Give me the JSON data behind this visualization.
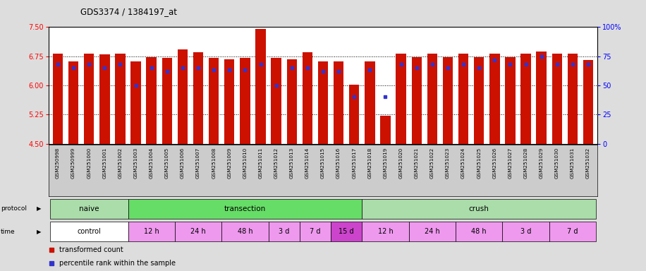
{
  "title": "GDS3374 / 1384197_at",
  "samples": [
    "GSM250998",
    "GSM250999",
    "GSM251000",
    "GSM251001",
    "GSM251002",
    "GSM251003",
    "GSM251004",
    "GSM251005",
    "GSM251006",
    "GSM251007",
    "GSM251008",
    "GSM251009",
    "GSM251010",
    "GSM251011",
    "GSM251012",
    "GSM251013",
    "GSM251014",
    "GSM251015",
    "GSM251016",
    "GSM251017",
    "GSM251018",
    "GSM251019",
    "GSM251020",
    "GSM251021",
    "GSM251022",
    "GSM251023",
    "GSM251024",
    "GSM251025",
    "GSM251026",
    "GSM251027",
    "GSM251028",
    "GSM251029",
    "GSM251030",
    "GSM251031",
    "GSM251032"
  ],
  "transformed_count": [
    6.82,
    6.62,
    6.82,
    6.8,
    6.82,
    6.62,
    6.72,
    6.7,
    6.92,
    6.85,
    6.7,
    6.68,
    6.7,
    7.46,
    6.7,
    6.68,
    6.86,
    6.62,
    6.62,
    6.02,
    6.62,
    5.22,
    6.82,
    6.72,
    6.82,
    6.72,
    6.82,
    6.72,
    6.82,
    6.72,
    6.82,
    6.88,
    6.82,
    6.82,
    6.65
  ],
  "percentile_rank": [
    68,
    65,
    68,
    65,
    68,
    50,
    65,
    62,
    65,
    65,
    63,
    63,
    63,
    68,
    50,
    65,
    65,
    62,
    62,
    40,
    63,
    40,
    68,
    65,
    68,
    65,
    68,
    65,
    72,
    68,
    68,
    75,
    68,
    68,
    68
  ],
  "ylim_left": [
    4.5,
    7.5
  ],
  "ylim_right": [
    0,
    100
  ],
  "yticks_left": [
    4.5,
    5.25,
    6.0,
    6.75,
    7.5
  ],
  "yticks_right": [
    0,
    25,
    50,
    75,
    100
  ],
  "bar_color": "#cc1100",
  "dot_color": "#3333cc",
  "protocol_groups": [
    {
      "label": "naive",
      "start": 0,
      "end": 4,
      "color": "#aaddaa"
    },
    {
      "label": "transection",
      "start": 5,
      "end": 19,
      "color": "#66dd66"
    },
    {
      "label": "crush",
      "start": 20,
      "end": 34,
      "color": "#aaddaa"
    }
  ],
  "time_groups": [
    {
      "label": "control",
      "start": 0,
      "end": 4,
      "color": "#ffffff"
    },
    {
      "label": "12 h",
      "start": 5,
      "end": 7,
      "color": "#ee99ee"
    },
    {
      "label": "24 h",
      "start": 8,
      "end": 10,
      "color": "#ee99ee"
    },
    {
      "label": "48 h",
      "start": 11,
      "end": 13,
      "color": "#ee99ee"
    },
    {
      "label": "3 d",
      "start": 14,
      "end": 15,
      "color": "#ee99ee"
    },
    {
      "label": "7 d",
      "start": 16,
      "end": 17,
      "color": "#ee99ee"
    },
    {
      "label": "15 d",
      "start": 18,
      "end": 19,
      "color": "#cc44cc"
    },
    {
      "label": "12 h",
      "start": 20,
      "end": 22,
      "color": "#ee99ee"
    },
    {
      "label": "24 h",
      "start": 23,
      "end": 25,
      "color": "#ee99ee"
    },
    {
      "label": "48 h",
      "start": 26,
      "end": 28,
      "color": "#ee99ee"
    },
    {
      "label": "3 d",
      "start": 29,
      "end": 31,
      "color": "#ee99ee"
    },
    {
      "label": "7 d",
      "start": 32,
      "end": 34,
      "color": "#ee99ee"
    }
  ],
  "legend_items": [
    {
      "label": "transformed count",
      "color": "#cc1100"
    },
    {
      "label": "percentile rank within the sample",
      "color": "#3333cc"
    }
  ],
  "fig_bg": "#dddddd",
  "label_area_bg": "#cccccc"
}
